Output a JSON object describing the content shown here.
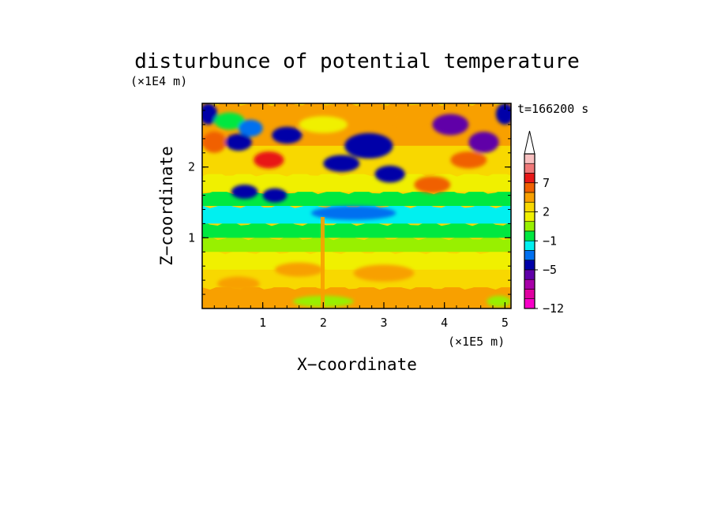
{
  "chart_data": {
    "type": "heatmap",
    "title": "disturbunce of potential temperature",
    "time_label": "t=166200 s",
    "xlabel": "X−coordinate",
    "ylabel": "Z−coordinate",
    "x_unit": "(×1E5 m)",
    "y_unit": "(×1E4 m)",
    "xlim": [
      0,
      5.1
    ],
    "ylim": [
      0,
      2.9
    ],
    "x_ticks": [
      "1",
      "2",
      "3",
      "4",
      "5"
    ],
    "y_ticks": [
      "1",
      "2"
    ],
    "colorbar": {
      "labels": [
        "7",
        "2",
        "−1",
        "−5",
        "−12"
      ],
      "colors": [
        "#f8c0c0",
        "#f07878",
        "#e81818",
        "#f06000",
        "#f8a000",
        "#f8d800",
        "#f0f000",
        "#98f000",
        "#00e840",
        "#00f0f0",
        "#0070f0",
        "#0000a8",
        "#6000a8",
        "#a800a8",
        "#e000a0",
        "#f800c8"
      ],
      "extend_max": true
    },
    "fields": {
      "background_layers": [
        {
          "z": [
            0.0,
            0.3
          ],
          "level": 4
        },
        {
          "z": [
            0.3,
            0.55
          ],
          "level": 5
        },
        {
          "z": [
            0.55,
            0.8
          ],
          "level": 6
        },
        {
          "z": [
            0.8,
            1.0
          ],
          "level": 7
        },
        {
          "z": [
            1.0,
            1.2
          ],
          "level": 8
        },
        {
          "z": [
            1.2,
            1.45
          ],
          "level": 9
        },
        {
          "z": [
            1.45,
            1.65
          ],
          "level": 8
        },
        {
          "z": [
            1.65,
            1.9
          ],
          "level": 6
        },
        {
          "z": [
            1.9,
            2.3
          ],
          "level": 5
        },
        {
          "z": [
            2.3,
            2.9
          ],
          "level": 4
        }
      ],
      "blobs": [
        {
          "x": 0.1,
          "z": 2.75,
          "rx": 0.15,
          "rz": 0.15,
          "level": 11
        },
        {
          "x": 0.45,
          "z": 2.65,
          "rx": 0.25,
          "rz": 0.12,
          "level": 8
        },
        {
          "x": 0.8,
          "z": 2.55,
          "rx": 0.2,
          "rz": 0.12,
          "level": 10
        },
        {
          "x": 0.2,
          "z": 2.35,
          "rx": 0.2,
          "rz": 0.15,
          "level": 3
        },
        {
          "x": 0.6,
          "z": 2.35,
          "rx": 0.22,
          "rz": 0.12,
          "level": 11
        },
        {
          "x": 1.1,
          "z": 2.1,
          "rx": 0.25,
          "rz": 0.12,
          "level": 2
        },
        {
          "x": 1.4,
          "z": 2.45,
          "rx": 0.25,
          "rz": 0.12,
          "level": 11
        },
        {
          "x": 0.7,
          "z": 1.65,
          "rx": 0.22,
          "rz": 0.1,
          "level": 11
        },
        {
          "x": 1.2,
          "z": 1.6,
          "rx": 0.2,
          "rz": 0.1,
          "level": 11
        },
        {
          "x": 2.3,
          "z": 2.05,
          "rx": 0.3,
          "rz": 0.12,
          "level": 11
        },
        {
          "x": 2.75,
          "z": 2.3,
          "rx": 0.4,
          "rz": 0.18,
          "level": 11
        },
        {
          "x": 3.1,
          "z": 1.9,
          "rx": 0.25,
          "rz": 0.12,
          "level": 11
        },
        {
          "x": 2.5,
          "z": 1.35,
          "rx": 0.7,
          "rz": 0.1,
          "level": 10
        },
        {
          "x": 4.1,
          "z": 2.6,
          "rx": 0.3,
          "rz": 0.15,
          "level": 12
        },
        {
          "x": 4.65,
          "z": 2.35,
          "rx": 0.25,
          "rz": 0.15,
          "level": 12
        },
        {
          "x": 4.4,
          "z": 2.1,
          "rx": 0.3,
          "rz": 0.12,
          "level": 3
        },
        {
          "x": 5.0,
          "z": 2.75,
          "rx": 0.15,
          "rz": 0.15,
          "level": 11
        },
        {
          "x": 3.8,
          "z": 1.75,
          "rx": 0.3,
          "rz": 0.12,
          "level": 3
        },
        {
          "x": 3.4,
          "z": 2.7,
          "rx": 0.3,
          "rz": 0.1,
          "level": 4
        },
        {
          "x": 2.0,
          "z": 2.6,
          "rx": 0.4,
          "rz": 0.12,
          "level": 6
        },
        {
          "x": 1.6,
          "z": 0.55,
          "rx": 0.4,
          "rz": 0.1,
          "level": 4
        },
        {
          "x": 3.0,
          "z": 0.5,
          "rx": 0.5,
          "rz": 0.12,
          "level": 4
        },
        {
          "x": 0.6,
          "z": 0.35,
          "rx": 0.35,
          "rz": 0.1,
          "level": 4
        },
        {
          "x": 2.0,
          "z": 0.1,
          "rx": 0.5,
          "rz": 0.08,
          "level": 7
        },
        {
          "x": 4.9,
          "z": 0.1,
          "rx": 0.2,
          "rz": 0.08,
          "level": 7
        }
      ]
    }
  }
}
